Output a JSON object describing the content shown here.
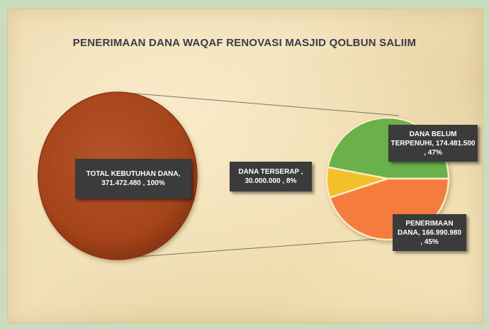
{
  "chart_data": {
    "type": "pie",
    "title": "PENERIMAAN DANA  WAQAF RENOVASI MASJID QOLBUN SALIIM",
    "main_slice": {
      "label": "TOTAL KEBUTUHAN DANA,\n371.472.480 , 100%",
      "value": 371472480,
      "percent": 100,
      "color": "#a5441c"
    },
    "sub_slices": [
      {
        "label": "DANA BELUM\nTERPENUHI,  174.481.500\n, 47%",
        "value": 174481500,
        "percent": 47,
        "color": "#6ab04c"
      },
      {
        "label": "PENERIMAAN\nDANA,  166.990.980\n, 45%",
        "value": 166990980,
        "percent": 45,
        "color": "#f47c3c"
      },
      {
        "label": "DANA TERSERAP ,\n30.000.000 , 8%",
        "value": 30000000,
        "percent": 8,
        "color": "#f3c02b"
      }
    ]
  }
}
